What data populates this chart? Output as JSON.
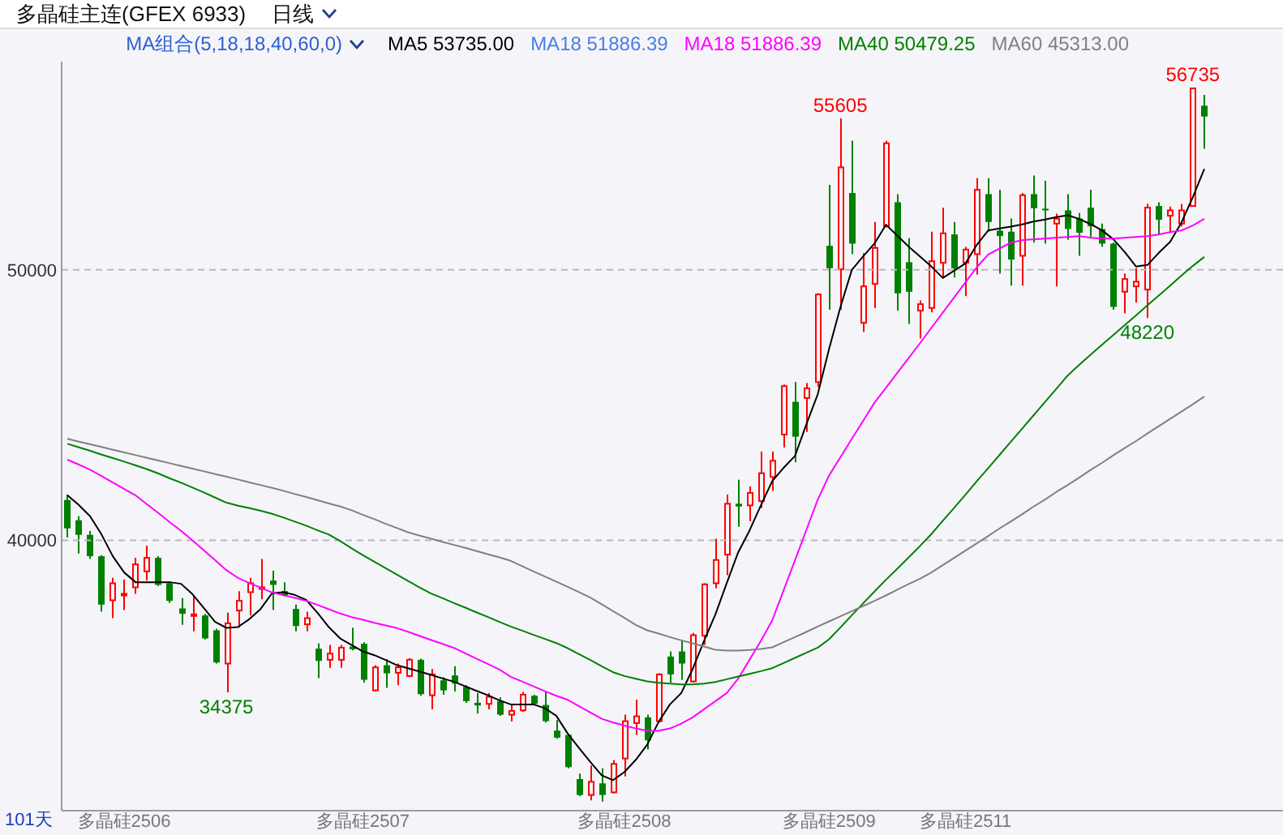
{
  "chart_data": {
    "type": "candlestick",
    "title": "多晶硅主连(GFEX 6933)",
    "subtitle": "日线",
    "legend_title": "MA组合(5,18,18,40,60,0)",
    "legend": "top right",
    "grid": "y",
    "ylim": [
      30000,
      57700
    ],
    "yticks": [
      40000,
      50000
    ],
    "categories": [
      null,
      null,
      null,
      null,
      null,
      "多晶硅2506",
      null,
      null,
      null,
      null,
      null,
      null,
      null,
      null,
      null,
      null,
      null,
      null,
      null,
      null,
      null,
      null,
      null,
      null,
      null,
      null,
      "多晶硅2507",
      null,
      null,
      null,
      null,
      null,
      null,
      null,
      null,
      null,
      null,
      null,
      null,
      null,
      null,
      null,
      null,
      null,
      null,
      null,
      null,
      null,
      null,
      "多晶硅2508",
      null,
      null,
      null,
      null,
      null,
      null,
      null,
      null,
      null,
      null,
      null,
      null,
      null,
      null,
      null,
      null,
      null,
      "多晶硅2509",
      null,
      null,
      null,
      null,
      null,
      null,
      null,
      null,
      null,
      null,
      null,
      "多晶硅2511",
      null,
      null,
      null,
      null,
      null,
      null,
      null,
      null,
      null,
      null,
      null,
      null,
      null,
      null,
      null,
      null,
      null,
      null,
      null,
      null,
      null
    ],
    "ohlc": [
      [
        41490,
        41690,
        40100,
        40440
      ],
      [
        40740,
        40890,
        39510,
        40200
      ],
      [
        40200,
        40340,
        39310,
        39410
      ],
      [
        39410,
        39450,
        37360,
        37620
      ],
      [
        37780,
        38610,
        37120,
        38410
      ],
      [
        37960,
        38550,
        37420,
        38020
      ],
      [
        38260,
        39350,
        38020,
        39110
      ],
      [
        38850,
        39800,
        38510,
        39350
      ],
      [
        39350,
        39410,
        38310,
        38350
      ],
      [
        38410,
        38470,
        37680,
        37760
      ],
      [
        37480,
        37860,
        36870,
        37280
      ],
      [
        37200,
        37920,
        36630,
        37260
      ],
      [
        37220,
        37280,
        36330,
        36370
      ],
      [
        36670,
        36730,
        35440,
        35480
      ],
      [
        35440,
        37320,
        34375,
        36930
      ],
      [
        37400,
        38120,
        36770,
        37760
      ],
      [
        38080,
        38610,
        37220,
        38410
      ],
      [
        38200,
        39310,
        37820,
        38260
      ],
      [
        38510,
        38870,
        37420,
        38350
      ],
      [
        38120,
        38450,
        37920,
        37960
      ],
      [
        37460,
        37620,
        36630,
        36830
      ],
      [
        36890,
        37360,
        36630,
        37120
      ],
      [
        35990,
        36190,
        34900,
        35540
      ],
      [
        35580,
        36130,
        35280,
        35810
      ],
      [
        35580,
        36130,
        35280,
        36030
      ],
      [
        36070,
        36770,
        35930,
        35970
      ],
      [
        36170,
        36230,
        34740,
        34840
      ],
      [
        34450,
        35380,
        34410,
        35300
      ],
      [
        35380,
        35600,
        34540,
        35080
      ],
      [
        35100,
        35440,
        34640,
        35300
      ],
      [
        34980,
        35640,
        34940,
        35580
      ],
      [
        35580,
        35620,
        34250,
        34310
      ],
      [
        34270,
        35240,
        33750,
        35040
      ],
      [
        34820,
        34940,
        34290,
        34450
      ],
      [
        35000,
        35340,
        34410,
        34700
      ],
      [
        34580,
        34640,
        33990,
        34050
      ],
      [
        33990,
        34350,
        33590,
        33890
      ],
      [
        33950,
        34350,
        33750,
        34210
      ],
      [
        34050,
        34190,
        33510,
        33550
      ],
      [
        33550,
        33950,
        33300,
        33690
      ],
      [
        33710,
        34390,
        33650,
        34290
      ],
      [
        34250,
        34290,
        33910,
        33950
      ],
      [
        33910,
        34390,
        33260,
        33310
      ],
      [
        32960,
        33350,
        32660,
        32700
      ],
      [
        32800,
        32820,
        31570,
        31610
      ],
      [
        31170,
        31370,
        30540,
        30580
      ],
      [
        30580,
        31670,
        30380,
        31070
      ],
      [
        31010,
        31570,
        30340,
        30580
      ],
      [
        30680,
        31870,
        30640,
        31730
      ],
      [
        31930,
        33550,
        31270,
        33310
      ],
      [
        33240,
        34110,
        32800,
        33490
      ],
      [
        33450,
        33550,
        32260,
        32600
      ],
      [
        33310,
        35080,
        33260,
        35040
      ],
      [
        35700,
        35890,
        34740,
        35040
      ],
      [
        35890,
        36270,
        34840,
        35440
      ],
      [
        34780,
        36570,
        34740,
        36490
      ],
      [
        36470,
        38410,
        36130,
        38370
      ],
      [
        38410,
        40060,
        38220,
        39270
      ],
      [
        39470,
        41690,
        38710,
        41350
      ],
      [
        41350,
        42240,
        40500,
        41250
      ],
      [
        41290,
        41990,
        40700,
        41750
      ],
      [
        41450,
        43280,
        41190,
        42480
      ],
      [
        42340,
        43280,
        41830,
        42940
      ],
      [
        43910,
        45760,
        43430,
        45700
      ],
      [
        45120,
        45850,
        42880,
        43830
      ],
      [
        45260,
        45810,
        44010,
        45620
      ],
      [
        45850,
        49130,
        45660,
        49090
      ],
      [
        50890,
        53140,
        48530,
        50060
      ],
      [
        50020,
        55605,
        48530,
        53790
      ],
      [
        52840,
        54780,
        50580,
        50970
      ],
      [
        48040,
        50620,
        47700,
        49390
      ],
      [
        49480,
        51770,
        48590,
        50810
      ],
      [
        51610,
        54780,
        51570,
        54680
      ],
      [
        52500,
        52800,
        48490,
        49130
      ],
      [
        50280,
        51170,
        48000,
        49190
      ],
      [
        48490,
        48870,
        47460,
        48730
      ],
      [
        48590,
        51410,
        48430,
        50320
      ],
      [
        50260,
        52300,
        49720,
        51350
      ],
      [
        51310,
        51770,
        49720,
        50060
      ],
      [
        50260,
        50850,
        49030,
        50750
      ],
      [
        50580,
        53390,
        49820,
        52960
      ],
      [
        52800,
        53390,
        51410,
        51770
      ],
      [
        51450,
        52960,
        49860,
        51250
      ],
      [
        51410,
        51900,
        49420,
        50380
      ],
      [
        50520,
        52840,
        49420,
        52760
      ],
      [
        52800,
        53490,
        51010,
        52280
      ],
      [
        52260,
        53290,
        50970,
        52200
      ],
      [
        51710,
        52080,
        49390,
        51890
      ],
      [
        52200,
        52800,
        51110,
        51510
      ],
      [
        51900,
        52100,
        50520,
        51370
      ],
      [
        52300,
        52960,
        51210,
        51610
      ],
      [
        51510,
        51710,
        50850,
        50970
      ],
      [
        50970,
        51010,
        48530,
        48630
      ],
      [
        49190,
        49860,
        48390,
        49660
      ],
      [
        49390,
        50060,
        48790,
        49560
      ],
      [
        49270,
        52440,
        48220,
        52300
      ],
      [
        52360,
        52500,
        51310,
        51850
      ],
      [
        52000,
        52340,
        51410,
        52200
      ],
      [
        51710,
        52440,
        51610,
        52200
      ],
      [
        52360,
        56735,
        52360,
        56710
      ],
      [
        56070,
        56470,
        54480,
        55670
      ]
    ],
    "colors": [
      "#008000",
      "#008000",
      "#008000",
      "#008000",
      "#ff0000",
      "#ff0000",
      "#ff0000",
      "#ff0000",
      "#008000",
      "#008000",
      "#008000",
      "#ff0000",
      "#008000",
      "#008000",
      "#ff0000",
      "#ff0000",
      "#ff0000",
      "#ff0000",
      "#008000",
      "#008000",
      "#008000",
      "#ff0000",
      "#008000",
      "#ff0000",
      "#ff0000",
      "#008000",
      "#008000",
      "#ff0000",
      "#008000",
      "#ff0000",
      "#ff0000",
      "#008000",
      "#ff0000",
      "#008000",
      "#008000",
      "#008000",
      "#008000",
      "#ff0000",
      "#008000",
      "#ff0000",
      "#ff0000",
      "#008000",
      "#008000",
      "#008000",
      "#008000",
      "#008000",
      "#ff0000",
      "#008000",
      "#ff0000",
      "#ff0000",
      "#ff0000",
      "#008000",
      "#ff0000",
      "#008000",
      "#008000",
      "#ff0000",
      "#ff0000",
      "#ff0000",
      "#ff0000",
      "#008000",
      "#ff0000",
      "#ff0000",
      "#ff0000",
      "#ff0000",
      "#008000",
      "#ff0000",
      "#ff0000",
      "#008000",
      "#ff0000",
      "#008000",
      "#ff0000",
      "#ff0000",
      "#ff0000",
      "#008000",
      "#008000",
      "#ff0000",
      "#ff0000",
      "#ff0000",
      "#008000",
      "#ff0000",
      "#ff0000",
      "#008000",
      "#008000",
      "#008000",
      "#ff0000",
      "#008000",
      "#008000",
      "#ff0000",
      "#008000",
      "#008000",
      "#008000",
      "#008000",
      "#008000",
      "#ff0000",
      "#ff0000",
      "#ff0000",
      "#008000",
      "#ff0000",
      "#ff0000",
      "#ff0000",
      "#008000"
    ],
    "series": [
      {
        "type": "line",
        "name": "MA5 53735.00",
        "color": "#000000",
        "values": [
          41670,
          41310,
          40890,
          40220,
          39410,
          38810,
          38450,
          38450,
          38450,
          38450,
          38390,
          38010,
          37500,
          36980,
          36760,
          36790,
          37080,
          37460,
          38040,
          38080,
          37980,
          37800,
          37320,
          36790,
          36370,
          36130,
          35890,
          35750,
          35570,
          35380,
          35260,
          35140,
          35020,
          34890,
          34770,
          34600,
          34430,
          34270,
          34080,
          33930,
          33930,
          33930,
          33790,
          33510,
          32860,
          32320,
          31800,
          31310,
          31130,
          31430,
          31880,
          32440,
          33280,
          33930,
          34350,
          35240,
          36280,
          37260,
          38420,
          39550,
          40360,
          41290,
          42190,
          42680,
          43120,
          44290,
          45400,
          47080,
          48630,
          50000,
          50500,
          50980,
          51670,
          51260,
          50860,
          50490,
          50120,
          49700,
          49970,
          50240,
          50930,
          51460,
          51530,
          51600,
          51680,
          51790,
          51860,
          51950,
          52020,
          51880,
          51690,
          51460,
          51130,
          50660,
          50120,
          50180,
          50630,
          51040,
          51760,
          52700,
          53735
        ]
      },
      {
        "type": "line",
        "name": "MA18 51886.39",
        "color": "#4a7ee6",
        "values": [
          null,
          null,
          null,
          null,
          null,
          null,
          null,
          null,
          null,
          null,
          null,
          null,
          null,
          null,
          null,
          null,
          null,
          null,
          null,
          null,
          null,
          null,
          null,
          null,
          null,
          null,
          null,
          null,
          null,
          null,
          null,
          null,
          null,
          null,
          null,
          null,
          null,
          null,
          null,
          null,
          null,
          null,
          null,
          null,
          null,
          null,
          null,
          null,
          null,
          null,
          null,
          null,
          null,
          null,
          null,
          null,
          null,
          null,
          null,
          null,
          null,
          null,
          null,
          null,
          null,
          null,
          null,
          null,
          null,
          null,
          null,
          null,
          null,
          null,
          null,
          null,
          null,
          null,
          null,
          null,
          null,
          null,
          null,
          null,
          null,
          null,
          null,
          null,
          null,
          null,
          null,
          null,
          null,
          null,
          null,
          null,
          null,
          null,
          null,
          null,
          null
        ]
      },
      {
        "type": "line",
        "name": "MA18 51886.39",
        "color": "#ff00ff",
        "values": [
          42980,
          42800,
          42610,
          42380,
          42140,
          41900,
          41660,
          41330,
          41010,
          40670,
          40350,
          40000,
          39630,
          39260,
          38890,
          38610,
          38420,
          38250,
          38070,
          37970,
          37870,
          37760,
          37610,
          37450,
          37290,
          37160,
          37060,
          36950,
          36850,
          36750,
          36610,
          36460,
          36310,
          36170,
          36020,
          35820,
          35620,
          35420,
          35220,
          34950,
          34780,
          34600,
          34420,
          34250,
          34100,
          33860,
          33630,
          33400,
          33260,
          33150,
          33040,
          32950,
          32950,
          33040,
          33220,
          33450,
          33750,
          34050,
          34350,
          34880,
          35580,
          36280,
          37040,
          38150,
          39260,
          40380,
          41500,
          42400,
          43070,
          43750,
          44420,
          45090,
          45640,
          46190,
          46740,
          47290,
          47860,
          48420,
          48980,
          49540,
          50100,
          50570,
          50790,
          51010,
          51100,
          51130,
          51160,
          51190,
          51220,
          51250,
          51190,
          51160,
          51160,
          51190,
          51220,
          51250,
          51310,
          51400,
          51460,
          51640,
          51886
        ]
      },
      {
        "type": "line",
        "name": "MA40 50479.25",
        "color": "#008000",
        "values": [
          43570,
          43440,
          43310,
          43170,
          43040,
          42910,
          42770,
          42630,
          42470,
          42290,
          42130,
          41950,
          41770,
          41580,
          41390,
          41280,
          41190,
          41090,
          40980,
          40840,
          40690,
          40540,
          40370,
          40210,
          39970,
          39700,
          39450,
          39210,
          38970,
          38730,
          38490,
          38250,
          38030,
          37860,
          37680,
          37510,
          37330,
          37160,
          36980,
          36810,
          36660,
          36500,
          36350,
          36200,
          36010,
          35790,
          35570,
          35340,
          35120,
          34980,
          34880,
          34780,
          34730,
          34700,
          34670,
          34670,
          34700,
          34760,
          34860,
          34960,
          35060,
          35160,
          35270,
          35460,
          35650,
          35840,
          36030,
          36340,
          36780,
          37230,
          37670,
          38110,
          38540,
          38950,
          39370,
          39790,
          40230,
          40720,
          41200,
          41690,
          42190,
          42670,
          43160,
          43650,
          44140,
          44630,
          45120,
          45610,
          46100,
          46490,
          46860,
          47230,
          47590,
          47960,
          48320,
          48690,
          49050,
          49420,
          49790,
          50150,
          50479
        ]
      },
      {
        "type": "line",
        "name": "MA60 45313.00",
        "color": "#808080",
        "values": [
          43750,
          43650,
          43550,
          43450,
          43350,
          43250,
          43150,
          43050,
          42950,
          42850,
          42750,
          42650,
          42550,
          42450,
          42350,
          42250,
          42140,
          42040,
          41940,
          41830,
          41710,
          41600,
          41480,
          41360,
          41250,
          41110,
          40940,
          40780,
          40610,
          40450,
          40290,
          40170,
          40060,
          39940,
          39830,
          39720,
          39600,
          39480,
          39370,
          39240,
          39040,
          38850,
          38660,
          38470,
          38280,
          38080,
          37880,
          37630,
          37380,
          37130,
          36870,
          36670,
          36550,
          36420,
          36300,
          36190,
          36070,
          35950,
          35920,
          35920,
          35940,
          35980,
          36040,
          36230,
          36420,
          36610,
          36810,
          37000,
          37190,
          37380,
          37570,
          37760,
          37960,
          38170,
          38380,
          38580,
          38810,
          39080,
          39350,
          39620,
          39890,
          40160,
          40440,
          40700,
          40970,
          41250,
          41510,
          41790,
          42050,
          42320,
          42600,
          42860,
          43140,
          43410,
          43670,
          43950,
          44220,
          44490,
          44760,
          45030,
          45313
        ]
      }
    ],
    "annotations": [
      {
        "text": "55605",
        "y": 55605
      },
      {
        "text": "56735",
        "y": 56735
      },
      {
        "text": "48220",
        "y": 48220
      },
      {
        "text": "34375",
        "y": 34375
      },
      "101天"
    ]
  }
}
